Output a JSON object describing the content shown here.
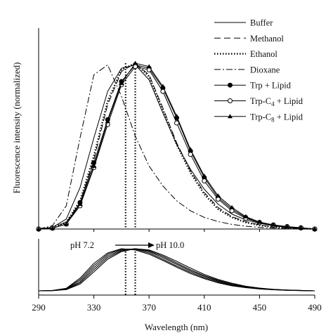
{
  "chart_data": [
    {
      "type": "line",
      "title": "",
      "xlabel": "",
      "ylabel": "Fluorescence intensity (normalized)",
      "xlim": [
        290,
        490
      ],
      "ylim": [
        0,
        1
      ],
      "grid": false,
      "legend_position": "top-right",
      "series": [
        {
          "name": "Buffer",
          "line": "solid",
          "marker": "none",
          "x": [
            290,
            300,
            310,
            320,
            330,
            340,
            350,
            360,
            370,
            380,
            390,
            400,
            410,
            420,
            430,
            440,
            450,
            460,
            470,
            480,
            490
          ],
          "y": [
            0.0,
            0.01,
            0.06,
            0.25,
            0.55,
            0.83,
            0.97,
            0.99,
            0.9,
            0.7,
            0.51,
            0.36,
            0.24,
            0.15,
            0.09,
            0.055,
            0.035,
            0.02,
            0.01,
            0.005,
            0.0
          ]
        },
        {
          "name": "Methanol",
          "line": "dashed",
          "marker": "none",
          "x": [
            290,
            300,
            310,
            320,
            330,
            340,
            350,
            360,
            370,
            380,
            390,
            400,
            410,
            420,
            430,
            440,
            450,
            460,
            470,
            480,
            490
          ],
          "y": [
            0.0,
            0.01,
            0.04,
            0.16,
            0.42,
            0.75,
            0.95,
            1.0,
            0.93,
            0.73,
            0.52,
            0.35,
            0.22,
            0.13,
            0.075,
            0.045,
            0.025,
            0.015,
            0.008,
            0.004,
            0.0
          ]
        },
        {
          "name": "Ethanol",
          "line": "dotted",
          "marker": "none",
          "x": [
            290,
            300,
            310,
            320,
            330,
            340,
            350,
            360,
            370,
            380,
            390,
            400,
            410,
            420,
            430,
            440,
            450,
            460,
            470,
            480,
            490
          ],
          "y": [
            0.0,
            0.01,
            0.04,
            0.17,
            0.44,
            0.77,
            0.96,
            1.0,
            0.92,
            0.72,
            0.51,
            0.34,
            0.21,
            0.12,
            0.07,
            0.04,
            0.022,
            0.012,
            0.006,
            0.003,
            0.0
          ]
        },
        {
          "name": "Dioxane",
          "line": "dashdot",
          "marker": "none",
          "x": [
            290,
            300,
            310,
            320,
            330,
            340,
            350,
            360,
            370,
            380,
            390,
            400,
            410,
            420,
            430,
            440,
            450,
            460,
            470,
            480,
            490
          ],
          "y": [
            0.0,
            0.02,
            0.14,
            0.55,
            0.93,
            0.99,
            0.8,
            0.56,
            0.38,
            0.26,
            0.17,
            0.11,
            0.07,
            0.045,
            0.028,
            0.017,
            0.01,
            0.006,
            0.003,
            0.001,
            0.0
          ]
        },
        {
          "name": "Trp + Lipid",
          "line": "solid",
          "marker": "filled-circle",
          "x": [
            290,
            300,
            310,
            320,
            330,
            340,
            350,
            360,
            370,
            380,
            390,
            400,
            410,
            420,
            430,
            440,
            450,
            460,
            470,
            480,
            490
          ],
          "y": [
            0.0,
            0.005,
            0.03,
            0.16,
            0.4,
            0.66,
            0.89,
            0.99,
            0.97,
            0.85,
            0.67,
            0.47,
            0.31,
            0.19,
            0.12,
            0.07,
            0.04,
            0.025,
            0.015,
            0.008,
            0.0
          ]
        },
        {
          "name": "Trp-C4 + Lipid",
          "line": "solid",
          "marker": "open-circle",
          "x": [
            290,
            300,
            310,
            320,
            330,
            340,
            350,
            360,
            370,
            380,
            390,
            400,
            410,
            420,
            430,
            440,
            450,
            460,
            470,
            480,
            490
          ],
          "y": [
            0.0,
            0.005,
            0.03,
            0.14,
            0.37,
            0.63,
            0.87,
            0.98,
            0.96,
            0.83,
            0.64,
            0.45,
            0.29,
            0.18,
            0.11,
            0.065,
            0.038,
            0.022,
            0.012,
            0.006,
            0.0
          ]
        },
        {
          "name": "Trp-C8 + Lipid",
          "line": "solid",
          "marker": "filled-triangle",
          "x": [
            290,
            300,
            310,
            320,
            330,
            340,
            350,
            360,
            370,
            380,
            390,
            400,
            410,
            420,
            430,
            440,
            450,
            460,
            470,
            480,
            490
          ],
          "y": [
            0.0,
            0.005,
            0.03,
            0.15,
            0.38,
            0.65,
            0.88,
            1.0,
            0.98,
            0.86,
            0.68,
            0.48,
            0.32,
            0.2,
            0.13,
            0.075,
            0.042,
            0.025,
            0.014,
            0.007,
            0.0
          ]
        }
      ],
      "annotations": [
        {
          "type": "vertical-dotted-line",
          "x": 353
        },
        {
          "type": "vertical-dotted-line",
          "x": 360
        }
      ]
    },
    {
      "type": "line",
      "title": "",
      "xlabel": "Wavelength (nm)",
      "ylabel": "",
      "xlim": [
        290,
        490
      ],
      "ylim": [
        0,
        1
      ],
      "x_ticks": [
        290,
        330,
        370,
        410,
        450,
        490
      ],
      "grid": false,
      "annotation": {
        "from": "pH 7.2",
        "to": "pH 10.0"
      },
      "series": [
        {
          "x": [
            290,
            300,
            310,
            320,
            330,
            340,
            350,
            360,
            370,
            380,
            390,
            400,
            410,
            420,
            430,
            440,
            450,
            460,
            470,
            480,
            490
          ],
          "y": [
            0.0,
            0.01,
            0.06,
            0.3,
            0.65,
            0.9,
            1.0,
            0.97,
            0.87,
            0.72,
            0.56,
            0.41,
            0.29,
            0.19,
            0.12,
            0.075,
            0.045,
            0.025,
            0.013,
            0.006,
            0.0
          ]
        },
        {
          "x": [
            290,
            300,
            310,
            320,
            330,
            340,
            350,
            360,
            370,
            380,
            390,
            400,
            410,
            420,
            430,
            440,
            450,
            460,
            470,
            480,
            490
          ],
          "y": [
            0.0,
            0.008,
            0.05,
            0.26,
            0.6,
            0.87,
            0.99,
            0.99,
            0.9,
            0.75,
            0.59,
            0.44,
            0.31,
            0.21,
            0.13,
            0.08,
            0.048,
            0.027,
            0.014,
            0.007,
            0.0
          ]
        },
        {
          "x": [
            290,
            300,
            310,
            320,
            330,
            340,
            350,
            360,
            370,
            380,
            390,
            400,
            410,
            420,
            430,
            440,
            450,
            460,
            470,
            480,
            490
          ],
          "y": [
            0.0,
            0.006,
            0.04,
            0.22,
            0.55,
            0.83,
            0.97,
            1.0,
            0.93,
            0.79,
            0.63,
            0.47,
            0.34,
            0.23,
            0.15,
            0.09,
            0.053,
            0.03,
            0.016,
            0.008,
            0.0
          ]
        },
        {
          "x": [
            290,
            300,
            310,
            320,
            330,
            340,
            350,
            360,
            370,
            380,
            390,
            400,
            410,
            420,
            430,
            440,
            450,
            460,
            470,
            480,
            490
          ],
          "y": [
            0.0,
            0.005,
            0.035,
            0.19,
            0.5,
            0.79,
            0.95,
            1.0,
            0.95,
            0.82,
            0.66,
            0.5,
            0.36,
            0.25,
            0.16,
            0.1,
            0.058,
            0.033,
            0.018,
            0.009,
            0.0
          ]
        },
        {
          "x": [
            290,
            300,
            310,
            320,
            330,
            340,
            350,
            360,
            370,
            380,
            390,
            400,
            410,
            420,
            430,
            440,
            450,
            460,
            470,
            480,
            490
          ],
          "y": [
            0.0,
            0.004,
            0.03,
            0.16,
            0.45,
            0.75,
            0.93,
            1.0,
            0.97,
            0.85,
            0.7,
            0.54,
            0.39,
            0.27,
            0.18,
            0.11,
            0.065,
            0.037,
            0.02,
            0.01,
            0.0
          ]
        }
      ]
    }
  ],
  "legend": [
    {
      "base": "Buffer",
      "sub": "",
      "rest": ""
    },
    {
      "base": "Methanol",
      "sub": "",
      "rest": ""
    },
    {
      "base": "Ethanol",
      "sub": "",
      "rest": ""
    },
    {
      "base": "Dioxane",
      "sub": "",
      "rest": ""
    },
    {
      "base": "Trp + Lipid",
      "sub": "",
      "rest": ""
    },
    {
      "base": "Trp-C",
      "sub": "4",
      "rest": " + Lipid"
    },
    {
      "base": "Trp-C",
      "sub": "8",
      "rest": " + Lipid"
    }
  ]
}
